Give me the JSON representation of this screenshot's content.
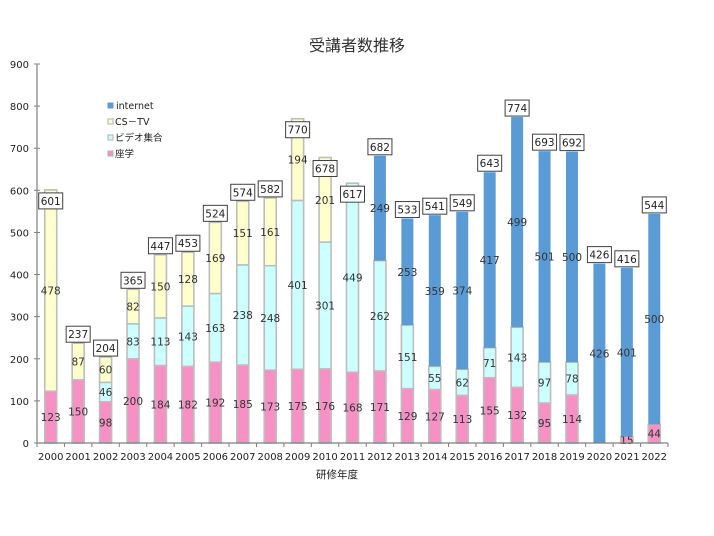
{
  "chart_data": {
    "type": "bar",
    "stacked": true,
    "title": "受講者数推移",
    "xlabel": "研修年度",
    "ylabel": "",
    "ylim": [
      0,
      900
    ],
    "yticks": [
      0,
      100,
      200,
      300,
      400,
      500,
      600,
      700,
      800,
      900
    ],
    "grid": false,
    "categories": [
      "2000",
      "2001",
      "2002",
      "2003",
      "2004",
      "2005",
      "2006",
      "2007",
      "2008",
      "2009",
      "2010",
      "2011",
      "2012",
      "2013",
      "2014",
      "2015",
      "2016",
      "2017",
      "2018",
      "2019",
      "2020",
      "2021",
      "2022"
    ],
    "series": [
      {
        "name": "座学",
        "color": "#f790c4",
        "values": [
          123,
          150,
          98,
          200,
          184,
          182,
          192,
          185,
          173,
          175,
          176,
          168,
          171,
          129,
          127,
          113,
          155,
          132,
          95,
          114,
          null,
          15,
          44
        ]
      },
      {
        "name": "ビデオ集合",
        "color": "#ccffff",
        "values": [
          null,
          null,
          46,
          83,
          113,
          143,
          163,
          238,
          248,
          401,
          301,
          449,
          262,
          151,
          55,
          62,
          71,
          143,
          97,
          78,
          null,
          null,
          null
        ]
      },
      {
        "name": "CS－TV",
        "color": "#ffffcc",
        "values": [
          478,
          87,
          60,
          82,
          150,
          128,
          169,
          151,
          161,
          194,
          201,
          null,
          null,
          null,
          null,
          null,
          null,
          null,
          null,
          null,
          null,
          null,
          null
        ]
      },
      {
        "name": "internet",
        "color": "#5b9bd5",
        "values": [
          null,
          null,
          null,
          null,
          null,
          null,
          null,
          null,
          null,
          null,
          null,
          null,
          249,
          253,
          359,
          374,
          417,
          499,
          501,
          500,
          426,
          401,
          500
        ]
      }
    ],
    "totals": [
      601,
      237,
      204,
      365,
      447,
      453,
      524,
      574,
      582,
      770,
      678,
      617,
      682,
      533,
      541,
      549,
      643,
      774,
      693,
      692,
      426,
      416,
      544
    ],
    "legend": {
      "position": "upper-left",
      "items": [
        {
          "name": "internet",
          "color": "#5b9bd5"
        },
        {
          "name": "CS－TV",
          "color": "#ffffcc"
        },
        {
          "name": "ビデオ集合",
          "color": "#ccffff"
        },
        {
          "name": "座学",
          "color": "#f790c4"
        }
      ]
    }
  }
}
